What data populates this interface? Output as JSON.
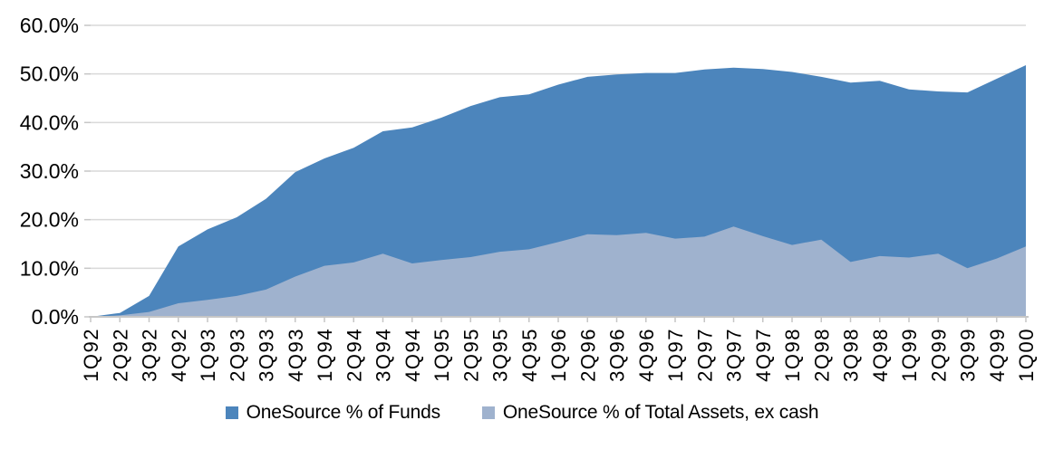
{
  "chart_data": {
    "type": "area",
    "title": "",
    "xlabel": "",
    "ylabel": "",
    "categories": [
      "1Q92",
      "2Q92",
      "3Q92",
      "4Q92",
      "1Q93",
      "2Q93",
      "3Q93",
      "4Q93",
      "1Q94",
      "2Q94",
      "3Q94",
      "4Q94",
      "1Q95",
      "2Q95",
      "3Q95",
      "4Q95",
      "1Q96",
      "2Q96",
      "3Q96",
      "4Q96",
      "1Q97",
      "2Q97",
      "3Q97",
      "4Q97",
      "1Q98",
      "2Q98",
      "3Q98",
      "4Q98",
      "1Q99",
      "2Q99",
      "3Q99",
      "4Q99",
      "1Q00"
    ],
    "series": [
      {
        "name": "OneSource % of Funds",
        "color": "#4C85BC",
        "values": [
          0,
          0.8,
          4.3,
          14.5,
          18.0,
          20.5,
          24.3,
          29.8,
          32.6,
          34.8,
          38.2,
          39.0,
          41.0,
          43.4,
          45.2,
          45.8,
          47.8,
          49.4,
          49.9,
          50.2,
          50.2,
          50.9,
          51.3,
          51.0,
          50.4,
          49.4,
          48.2,
          48.6,
          46.8,
          46.4,
          46.2,
          49.0,
          51.8
        ]
      },
      {
        "name": "OneSource % of Total Assets, ex cash",
        "color": "#9FB2CE",
        "values": [
          0,
          0.3,
          1.0,
          2.8,
          3.5,
          4.3,
          5.6,
          8.3,
          10.5,
          11.2,
          13.0,
          11.0,
          11.7,
          12.3,
          13.4,
          13.9,
          15.4,
          17.0,
          16.8,
          17.3,
          16.1,
          16.5,
          18.6,
          16.6,
          14.8,
          15.9,
          11.3,
          12.5,
          12.2,
          13.0,
          10.0,
          12.0,
          14.5
        ]
      }
    ],
    "ylim": [
      0,
      60
    ],
    "y_ticks": [
      0,
      10,
      20,
      30,
      40,
      50,
      60
    ],
    "y_tick_labels": [
      "0.0%",
      "10.0%",
      "20.0%",
      "30.0%",
      "40.0%",
      "50.0%",
      "60.0%"
    ],
    "grid": "horizontal",
    "legend_position": "bottom"
  },
  "colors": {
    "gridline": "#D9D9D9",
    "axis": "#C6C6C6",
    "text": "#000000",
    "background": "#FFFFFF"
  }
}
